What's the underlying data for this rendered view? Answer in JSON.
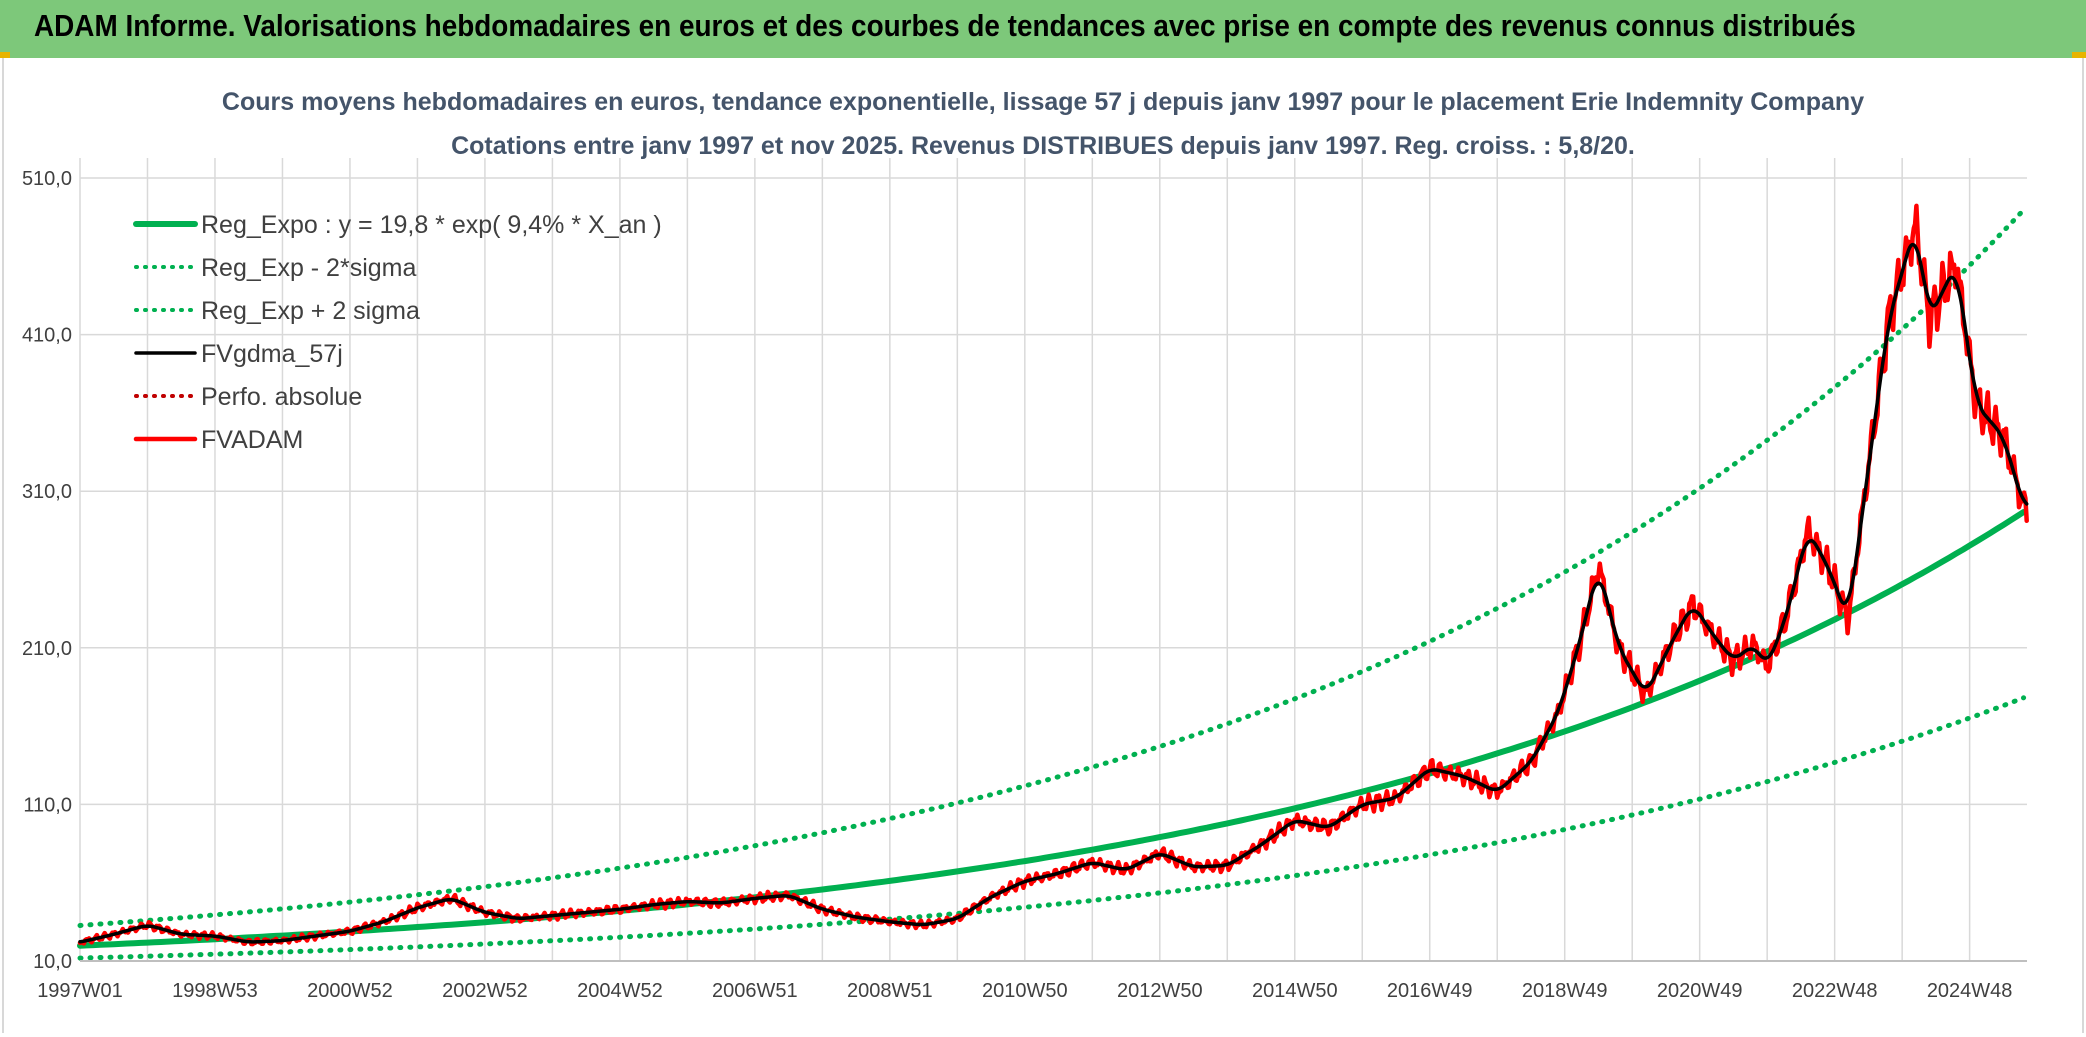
{
  "header": {
    "title": "ADAM Informe. Valorisations hebdomadaires en euros et des courbes de tendances avec prise en compte des revenus connus distribués"
  },
  "chart_data": {
    "type": "line",
    "title": "Cours moyens hebdomadaires en euros, tendance exponentielle, lissage 57 j depuis janv 1997 pour le placement Erie Indemnity Company",
    "subtitle": "Cotations entre janv 1997 et nov 2025. Revenus DISTRIBUES depuis janv 1997. Reg. croiss. : 5,8/20.",
    "xlabel": "",
    "ylabel": "",
    "x_ticks": [
      "1997W01",
      "1998W53",
      "2000W52",
      "2002W52",
      "2004W52",
      "2006W51",
      "2008W51",
      "2010W50",
      "2012W50",
      "2014W50",
      "2016W49",
      "2018W49",
      "2020W49",
      "2022W48",
      "2024W48"
    ],
    "x_range": [
      1997.0,
      2025.85
    ],
    "y_ticks": [
      "10,0",
      "110,0",
      "210,0",
      "310,0",
      "410,0",
      "510,0"
    ],
    "ylim": [
      10,
      510
    ],
    "grid": true,
    "legend_position": "top-left",
    "regression": {
      "a": 19.8,
      "rate": 0.094,
      "sigma_factor_low": 0.6,
      "sigma_factor_high": 1.65
    },
    "series": [
      {
        "name": "Reg_Expo : y = 19,8 * exp( 9,4% *  X_an )",
        "color": "#00b050",
        "style": "solid",
        "width": 6,
        "derived": "reg_center"
      },
      {
        "name": "Reg_Exp - 2*sigma",
        "color": "#00b050",
        "style": "dotted",
        "width": 5,
        "derived": "reg_low"
      },
      {
        "name": "Reg_Exp + 2 sigma",
        "color": "#00b050",
        "style": "dotted",
        "width": 5,
        "derived": "reg_high"
      },
      {
        "name": "FVgdma_57j",
        "color": "#000000",
        "style": "solid",
        "width": 3.5,
        "derived": "smooth"
      },
      {
        "name": "Perfo. absolue",
        "color": "#c00000",
        "style": "dotted",
        "width": 3,
        "derived": "none"
      },
      {
        "name": "FVADAM",
        "color": "#ff0000",
        "style": "solid",
        "width": 4.5,
        "points": [
          [
            1997.0,
            22
          ],
          [
            1997.5,
            27
          ],
          [
            1998.0,
            33
          ],
          [
            1998.5,
            27
          ],
          [
            1999.0,
            26
          ],
          [
            1999.5,
            22
          ],
          [
            2000.0,
            23
          ],
          [
            2000.5,
            26
          ],
          [
            2001.0,
            29
          ],
          [
            2001.5,
            35
          ],
          [
            2002.0,
            44
          ],
          [
            2002.5,
            50
          ],
          [
            2003.0,
            41
          ],
          [
            2003.5,
            37
          ],
          [
            2004.0,
            39
          ],
          [
            2004.5,
            41
          ],
          [
            2005.0,
            43
          ],
          [
            2005.5,
            46
          ],
          [
            2006.0,
            48
          ],
          [
            2006.5,
            47
          ],
          [
            2007.0,
            50
          ],
          [
            2007.5,
            52
          ],
          [
            2008.0,
            43
          ],
          [
            2008.5,
            38
          ],
          [
            2009.0,
            35
          ],
          [
            2009.5,
            33
          ],
          [
            2010.0,
            37
          ],
          [
            2010.5,
            51
          ],
          [
            2011.0,
            61
          ],
          [
            2011.5,
            66
          ],
          [
            2012.0,
            73
          ],
          [
            2012.5,
            68
          ],
          [
            2013.0,
            79
          ],
          [
            2013.5,
            70
          ],
          [
            2014.0,
            71
          ],
          [
            2014.5,
            84
          ],
          [
            2015.0,
            100
          ],
          [
            2015.5,
            95
          ],
          [
            2016.0,
            110
          ],
          [
            2016.5,
            114
          ],
          [
            2017.0,
            133
          ],
          [
            2017.5,
            128
          ],
          [
            2018.0,
            118
          ],
          [
            2018.5,
            137
          ],
          [
            2018.9,
            168
          ],
          [
            2019.2,
            210
          ],
          [
            2019.5,
            262
          ],
          [
            2019.8,
            210
          ],
          [
            2020.2,
            180
          ],
          [
            2020.6,
            215
          ],
          [
            2020.9,
            238
          ],
          [
            2021.2,
            218
          ],
          [
            2021.5,
            202
          ],
          [
            2021.8,
            212
          ],
          [
            2022.0,
            198
          ],
          [
            2022.3,
            232
          ],
          [
            2022.6,
            285
          ],
          [
            2022.9,
            262
          ],
          [
            2023.2,
            228
          ],
          [
            2023.5,
            325
          ],
          [
            2023.8,
            420
          ],
          [
            2024.2,
            480
          ],
          [
            2024.4,
            420
          ],
          [
            2024.8,
            455
          ],
          [
            2025.1,
            365
          ],
          [
            2025.5,
            345
          ],
          [
            2025.8,
            300
          ]
        ]
      }
    ]
  }
}
